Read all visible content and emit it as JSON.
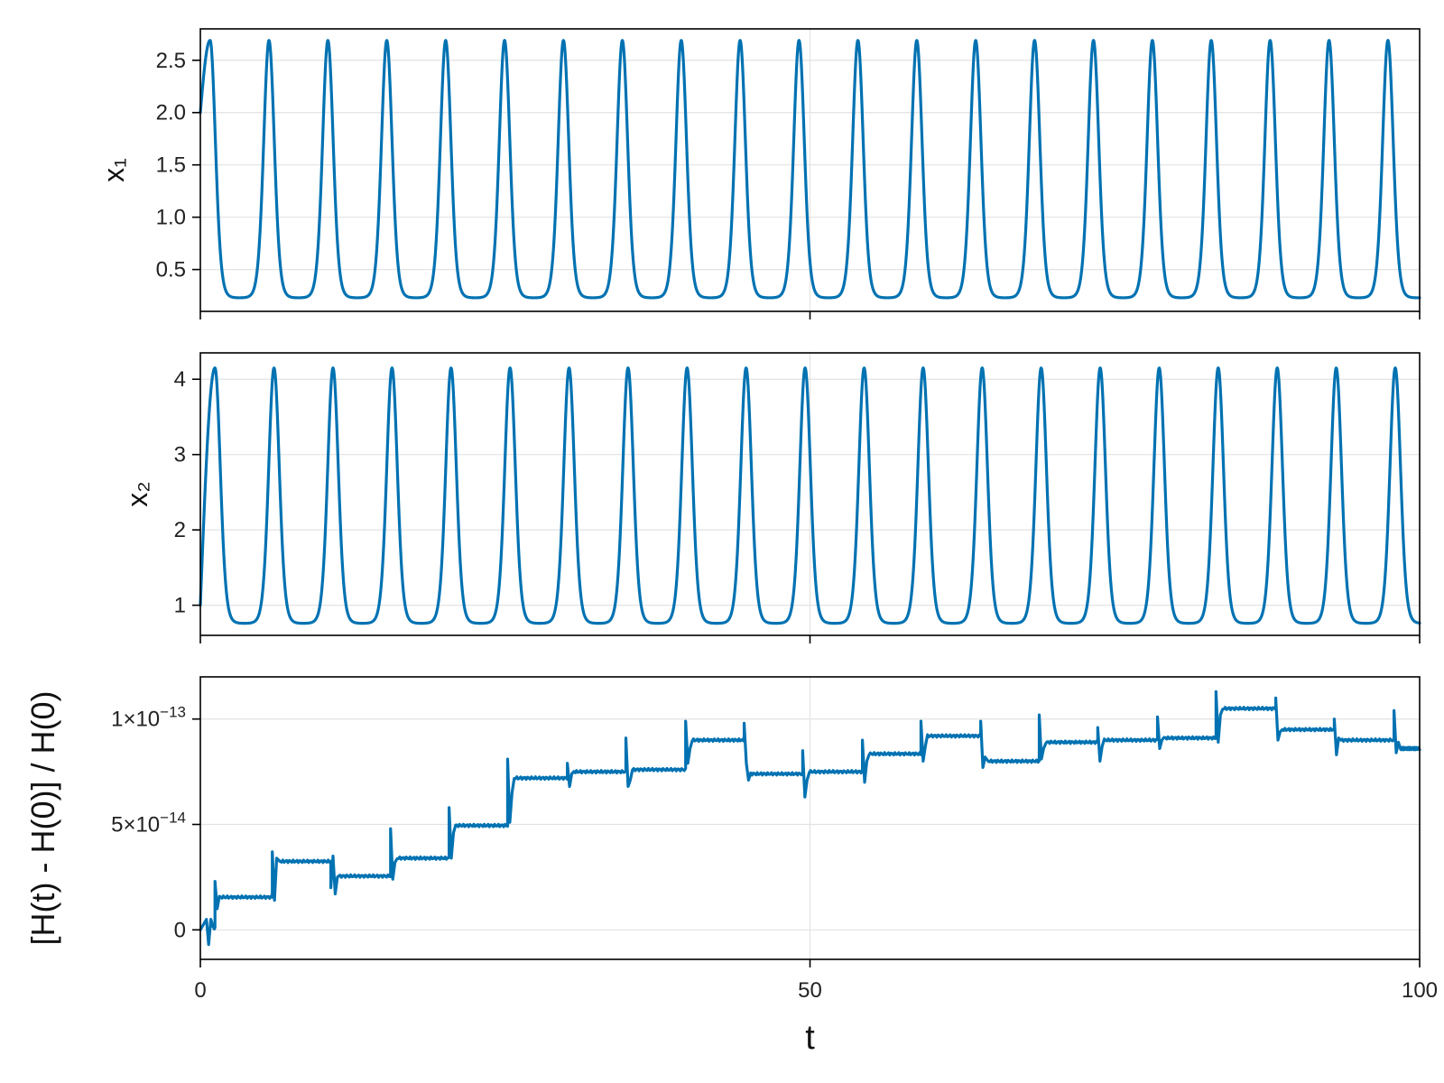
{
  "chart_data": [
    {
      "type": "line",
      "ylabel": "x₁",
      "xlim": [
        0,
        100
      ],
      "ylim": [
        0.1,
        2.8
      ],
      "grid": true,
      "x_ticks": [
        0,
        50,
        100
      ],
      "x_tick_labels_shown": false,
      "y_ticks": [
        0.5,
        1.0,
        1.5,
        2.0,
        2.5
      ],
      "y_tick_labels": [
        "0.5",
        "1.0",
        "1.5",
        "2.0",
        "2.5"
      ],
      "series": [
        {
          "color": "#0072b2",
          "initial_value": 2.0,
          "min": 0.23,
          "max": 2.69,
          "peak_times": [
            0.8,
            5.4,
            10.3,
            15.1,
            19.9,
            24.8,
            29.6,
            34.4,
            39.3,
            44.1,
            49.0,
            53.8,
            58.7,
            63.5,
            68.3,
            73.2,
            78.0,
            82.9,
            87.7,
            92.5,
            97.4
          ],
          "final_value": 0.35
        }
      ]
    },
    {
      "type": "line",
      "ylabel": "x₂",
      "xlim": [
        0,
        100
      ],
      "ylim": [
        0.6,
        4.35
      ],
      "grid": true,
      "x_ticks": [
        0,
        50,
        100
      ],
      "x_tick_labels_shown": false,
      "y_ticks": [
        1,
        2,
        3,
        4
      ],
      "y_tick_labels": [
        "1",
        "2",
        "3",
        "4"
      ],
      "series": [
        {
          "color": "#0072b2",
          "initial_value": 1.0,
          "min": 0.76,
          "max": 4.15,
          "peak_times": [
            1.2,
            6.1,
            10.9,
            15.7,
            20.6,
            25.4,
            30.3,
            35.1,
            39.9,
            44.8,
            49.6,
            54.5,
            59.3,
            64.1,
            69.0,
            73.8,
            78.7,
            83.5,
            88.3,
            93.2,
            98.0
          ],
          "final_value": 1.15
        }
      ]
    },
    {
      "type": "line",
      "ylabel": "[H(t) - H(0)] / H(0)",
      "xlabel": "t",
      "xlim": [
        0,
        100
      ],
      "ylim": [
        -1.4e-14,
        1.2e-13
      ],
      "grid": true,
      "x_ticks": [
        0,
        50,
        100
      ],
      "x_tick_labels": [
        "0",
        "50",
        "100"
      ],
      "y_ticks": [
        0,
        5e-14,
        1e-13
      ],
      "y_tick_labels": [
        {
          "mantissa": "0",
          "exponent": ""
        },
        {
          "mantissa": "5×10",
          "exponent": "−14"
        },
        {
          "mantissa": "1×10",
          "exponent": "−13"
        }
      ],
      "series": [
        {
          "color": "#0072b2",
          "levels": [
            {
              "x0": 0.0,
              "x1": 1.2,
              "y": 1e-15
            },
            {
              "x0": 1.2,
              "x1": 5.9,
              "y": 1.55e-14
            },
            {
              "x0": 5.9,
              "x1": 10.7,
              "y": 3.25e-14
            },
            {
              "x0": 10.7,
              "x1": 15.6,
              "y": 2.55e-14
            },
            {
              "x0": 15.6,
              "x1": 20.4,
              "y": 3.4e-14
            },
            {
              "x0": 20.4,
              "x1": 25.2,
              "y": 4.95e-14
            },
            {
              "x0": 25.2,
              "x1": 30.1,
              "y": 7.2e-14
            },
            {
              "x0": 30.1,
              "x1": 34.9,
              "y": 7.5e-14
            },
            {
              "x0": 34.9,
              "x1": 39.8,
              "y": 7.6e-14
            },
            {
              "x0": 39.8,
              "x1": 44.6,
              "y": 9e-14
            },
            {
              "x0": 44.6,
              "x1": 49.4,
              "y": 7.4e-14
            },
            {
              "x0": 49.4,
              "x1": 54.3,
              "y": 7.5e-14
            },
            {
              "x0": 54.3,
              "x1": 59.1,
              "y": 8.35e-14
            },
            {
              "x0": 59.1,
              "x1": 64.0,
              "y": 9.2e-14
            },
            {
              "x0": 64.0,
              "x1": 68.8,
              "y": 8e-14
            },
            {
              "x0": 68.8,
              "x1": 73.6,
              "y": 8.9e-14
            },
            {
              "x0": 73.6,
              "x1": 78.5,
              "y": 9e-14
            },
            {
              "x0": 78.5,
              "x1": 83.3,
              "y": 9.1e-14
            },
            {
              "x0": 83.3,
              "x1": 88.2,
              "y": 1.05e-13
            },
            {
              "x0": 88.2,
              "x1": 93.0,
              "y": 9.5e-14
            },
            {
              "x0": 93.0,
              "x1": 97.9,
              "y": 9e-14
            },
            {
              "x0": 97.9,
              "x1": 100.0,
              "y": 8.6e-14
            }
          ],
          "spikes": [
            {
              "x": 0.5,
              "values": [
                5e-15,
                -7e-15,
                5e-15
              ]
            },
            {
              "x": 1.2,
              "values": [
                2.3e-14,
                1e-14
              ]
            },
            {
              "x": 5.9,
              "values": [
                3.7e-14,
                1.4e-14,
                3.4e-14
              ]
            },
            {
              "x": 10.7,
              "values": [
                2e-14,
                3.5e-14,
                1.7e-14
              ]
            },
            {
              "x": 15.6,
              "values": [
                4.8e-14,
                2.4e-14,
                3.2e-14
              ]
            },
            {
              "x": 20.4,
              "values": [
                5.8e-14,
                3.4e-14,
                4.6e-14
              ]
            },
            {
              "x": 25.2,
              "values": [
                8.1e-14,
                5.1e-14,
                6.5e-14
              ]
            },
            {
              "x": 30.1,
              "values": [
                7.9e-14,
                6.8e-14,
                7.4e-14
              ]
            },
            {
              "x": 34.9,
              "values": [
                9.1e-14,
                6.8e-14,
                7.1e-14
              ]
            },
            {
              "x": 39.8,
              "values": [
                9.9e-14,
                7.9e-14,
                8.6e-14
              ]
            },
            {
              "x": 44.6,
              "values": [
                9.8e-14,
                7.9e-14,
                7.1e-14
              ]
            },
            {
              "x": 49.4,
              "values": [
                8.5e-14,
                6.3e-14,
                7.1e-14
              ]
            },
            {
              "x": 54.3,
              "values": [
                9e-14,
                7e-14,
                8e-14
              ]
            },
            {
              "x": 59.1,
              "values": [
                9.9e-14,
                8e-14,
                8.7e-14
              ]
            },
            {
              "x": 64.0,
              "values": [
                9.9e-14,
                7.7e-14,
                8.2e-14
              ]
            },
            {
              "x": 68.8,
              "values": [
                1.02e-13,
                8.1e-14,
                8.6e-14
              ]
            },
            {
              "x": 73.6,
              "values": [
                9.6e-14,
                8e-14,
                8.7e-14
              ]
            },
            {
              "x": 78.5,
              "values": [
                1.01e-13,
                8.6e-14,
                9e-14
              ]
            },
            {
              "x": 83.3,
              "values": [
                1.13e-13,
                8.9e-14,
                1.02e-13
              ]
            },
            {
              "x": 88.2,
              "values": [
                1.1e-13,
                9e-14,
                9.4e-14
              ]
            },
            {
              "x": 93.0,
              "values": [
                1e-13,
                8.3e-14,
                9.1e-14
              ]
            },
            {
              "x": 97.9,
              "values": [
                1.04e-13,
                8.4e-14,
                8.9e-14
              ]
            }
          ]
        }
      ]
    }
  ]
}
